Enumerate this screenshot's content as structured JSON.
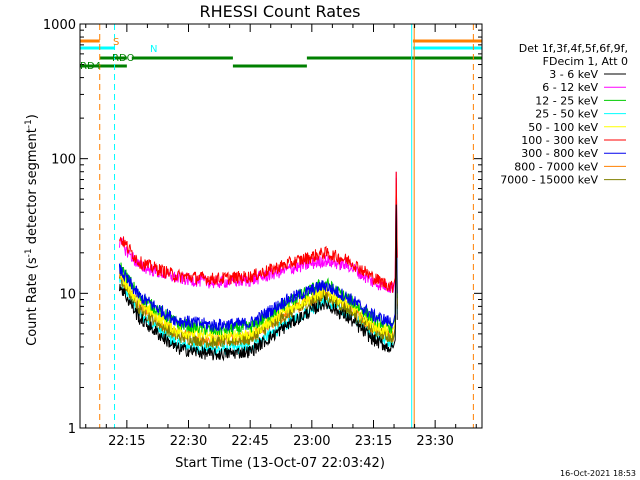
{
  "chart_data": {
    "type": "line",
    "title": "RHESSI Count Rates",
    "xlabel": "Start Time (13-Oct-07 22:03:42)",
    "ylabel_main": "Count Rate (s",
    "ylabel_sup1": "-1",
    "ylabel_mid": " detector segment",
    "ylabel_sup2": "-1",
    "ylabel_end": ")",
    "y_scale": "log",
    "ylim": [
      1,
      1000
    ],
    "xlim_minutes": [
      22.06,
      23.69
    ],
    "x_ticks": [
      {
        "label": "22:15",
        "minute": 22.25
      },
      {
        "label": "22:30",
        "minute": 22.5
      },
      {
        "label": "22:45",
        "minute": 22.75
      },
      {
        "label": "23:00",
        "minute": 23.0
      },
      {
        "label": "23:15",
        "minute": 23.25
      },
      {
        "label": "23:30",
        "minute": 23.5
      }
    ],
    "y_ticks": [
      {
        "label": "1",
        "value": 1
      },
      {
        "label": "10",
        "value": 10
      },
      {
        "label": "100",
        "value": 100
      },
      {
        "label": "1000",
        "value": 1000
      }
    ],
    "legend": {
      "placement": "top-right",
      "header_line1": "Det 1f,3f,4f,5f,6f,9f,",
      "header_line2": "FDecim 1, Att 0"
    },
    "series": [
      {
        "name": "3 - 6 keV",
        "color": "#000000",
        "points": [
          [
            22.22,
            11.5
          ],
          [
            22.3,
            6.5
          ],
          [
            22.45,
            3.9
          ],
          [
            22.6,
            3.5
          ],
          [
            22.75,
            3.7
          ],
          [
            22.9,
            5.8
          ],
          [
            23.05,
            8.5
          ],
          [
            23.15,
            6.5
          ],
          [
            23.25,
            4.5
          ],
          [
            23.33,
            3.8
          ]
        ]
      },
      {
        "name": "6 - 12 keV",
        "color": "#ff00ff",
        "points": [
          [
            22.22,
            24
          ],
          [
            22.3,
            16
          ],
          [
            22.45,
            13
          ],
          [
            22.6,
            12
          ],
          [
            22.75,
            12.5
          ],
          [
            22.9,
            15
          ],
          [
            23.05,
            17.5
          ],
          [
            23.15,
            16
          ],
          [
            23.25,
            12
          ],
          [
            23.33,
            11
          ]
        ]
      },
      {
        "name": "12 - 25 keV",
        "color": "#00cc00",
        "points": [
          [
            22.22,
            16
          ],
          [
            22.3,
            9.5
          ],
          [
            22.45,
            6
          ],
          [
            22.6,
            5.3
          ],
          [
            22.75,
            5.6
          ],
          [
            22.9,
            8.5
          ],
          [
            23.05,
            12
          ],
          [
            23.15,
            9
          ],
          [
            23.25,
            6.5
          ],
          [
            23.33,
            5.5
          ]
        ]
      },
      {
        "name": "25 - 50 keV",
        "color": "#00ffff",
        "points": [
          [
            22.22,
            12.5
          ],
          [
            22.3,
            7
          ],
          [
            22.45,
            4.2
          ],
          [
            22.6,
            3.8
          ],
          [
            22.75,
            4
          ],
          [
            22.9,
            6
          ],
          [
            23.05,
            8.8
          ],
          [
            23.15,
            7
          ],
          [
            23.25,
            5
          ],
          [
            23.33,
            4.2
          ]
        ]
      },
      {
        "name": "50 - 100 keV",
        "color": "#ffff00",
        "points": [
          [
            22.22,
            14
          ],
          [
            22.3,
            8.5
          ],
          [
            22.45,
            5.3
          ],
          [
            22.6,
            4.8
          ],
          [
            22.75,
            5
          ],
          [
            22.9,
            7.6
          ],
          [
            23.05,
            10.5
          ],
          [
            23.15,
            8.3
          ],
          [
            23.25,
            5.8
          ],
          [
            23.33,
            5
          ]
        ]
      },
      {
        "name": "100 - 300 keV",
        "color": "#ff0000",
        "points": [
          [
            22.22,
            26
          ],
          [
            22.3,
            17
          ],
          [
            22.45,
            13.5
          ],
          [
            22.6,
            12.8
          ],
          [
            22.75,
            13.3
          ],
          [
            22.9,
            16.5
          ],
          [
            23.05,
            20
          ],
          [
            23.15,
            17.5
          ],
          [
            23.25,
            13
          ],
          [
            23.33,
            11
          ]
        ]
      },
      {
        "name": "300 - 800 keV",
        "color": "#0000ee",
        "points": [
          [
            22.22,
            15
          ],
          [
            22.3,
            9.5
          ],
          [
            22.45,
            6.3
          ],
          [
            22.6,
            5.8
          ],
          [
            22.75,
            6
          ],
          [
            22.9,
            9
          ],
          [
            23.05,
            11.5
          ],
          [
            23.15,
            9.2
          ],
          [
            23.25,
            6.8
          ],
          [
            23.33,
            6
          ]
        ]
      },
      {
        "name": "800 - 7000 keV",
        "color": "#ff8000",
        "points": [
          [
            22.22,
            13.5
          ],
          [
            22.3,
            8
          ],
          [
            22.45,
            5
          ],
          [
            22.6,
            4.5
          ],
          [
            22.75,
            4.8
          ],
          [
            22.9,
            7.2
          ],
          [
            23.05,
            10
          ],
          [
            23.15,
            7.8
          ],
          [
            23.25,
            5.5
          ],
          [
            23.33,
            4.8
          ]
        ]
      },
      {
        "name": "7000 - 15000 keV",
        "color": "#808000",
        "points": [
          [
            22.22,
            13
          ],
          [
            22.3,
            7.6
          ],
          [
            22.45,
            4.8
          ],
          [
            22.6,
            4.3
          ],
          [
            22.75,
            4.6
          ],
          [
            22.9,
            7
          ],
          [
            23.05,
            9.7
          ],
          [
            23.15,
            7.5
          ],
          [
            23.25,
            5.3
          ],
          [
            23.33,
            4.6
          ]
        ]
      }
    ],
    "annotations": {
      "s_label": "S",
      "n_label": "N",
      "rdo_label": "RDO",
      "rd4_label": "RD4"
    }
  },
  "timestamp": "16-Oct-2021 18:53"
}
